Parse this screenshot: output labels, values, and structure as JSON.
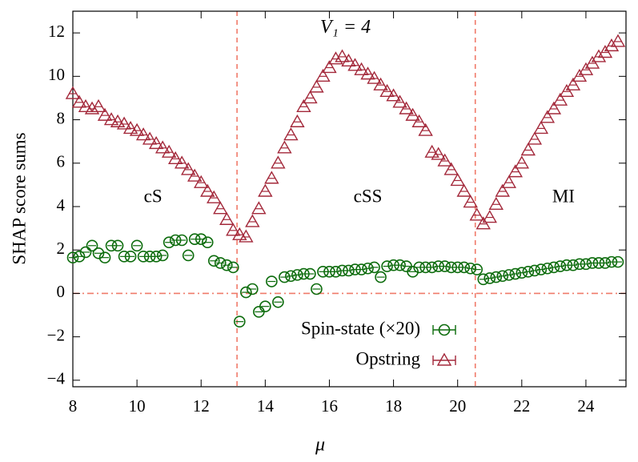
{
  "chart_data": {
    "type": "scatter",
    "xlabel": "μ",
    "ylabel": "SHAP score sums",
    "xlim": [
      8,
      25.25
    ],
    "ylim": [
      -4.3,
      13
    ],
    "xticks": [
      8,
      10,
      12,
      14,
      16,
      18,
      20,
      22,
      24
    ],
    "yticks": [
      {
        "value": -4,
        "label": "−4"
      },
      {
        "value": -2,
        "label": "−2"
      },
      0,
      2,
      4,
      6,
      8,
      10,
      12
    ],
    "vlines": [
      13.12,
      20.55
    ],
    "hlines": [
      0
    ],
    "annotations": [
      "V₁ = 4",
      "cS",
      "cSS",
      "MI"
    ],
    "legend": "bottom-center",
    "x": [
      8.0,
      8.2,
      8.4,
      8.6,
      8.8,
      9.0,
      9.2,
      9.4,
      9.6,
      9.8,
      10.0,
      10.2,
      10.4,
      10.6,
      10.8,
      11.0,
      11.2,
      11.4,
      11.6,
      11.8,
      12.0,
      12.2,
      12.4,
      12.6,
      12.8,
      13.0,
      13.2,
      13.4,
      13.6,
      13.8,
      14.0,
      14.2,
      14.4,
      14.6,
      14.8,
      15.0,
      15.2,
      15.4,
      15.6,
      15.8,
      16.0,
      16.2,
      16.4,
      16.6,
      16.8,
      17.0,
      17.2,
      17.4,
      17.6,
      17.8,
      18.0,
      18.2,
      18.4,
      18.6,
      18.8,
      19.0,
      19.2,
      19.4,
      19.6,
      19.8,
      20.0,
      20.2,
      20.4,
      20.6,
      20.8,
      21.0,
      21.2,
      21.4,
      21.6,
      21.8,
      22.0,
      22.2,
      22.4,
      22.6,
      22.8,
      23.0,
      23.2,
      23.4,
      23.6,
      23.8,
      24.0,
      24.2,
      24.4,
      24.6,
      24.8,
      25.0
    ],
    "series": [
      {
        "name": "Spin-state (×20)",
        "color": "#0b6b0b",
        "marker": "circle",
        "values": [
          1.65,
          1.7,
          1.9,
          2.2,
          1.85,
          1.65,
          2.2,
          2.2,
          1.7,
          1.7,
          2.2,
          1.7,
          1.7,
          1.7,
          1.75,
          2.35,
          2.45,
          2.45,
          1.75,
          2.5,
          2.5,
          2.35,
          1.5,
          1.4,
          1.3,
          1.2,
          -1.3,
          0.05,
          0.2,
          -0.85,
          -0.6,
          0.55,
          -0.4,
          0.75,
          0.8,
          0.85,
          0.9,
          0.9,
          0.2,
          1.0,
          1.0,
          1.0,
          1.05,
          1.05,
          1.1,
          1.1,
          1.15,
          1.2,
          0.75,
          1.25,
          1.3,
          1.3,
          1.25,
          1.0,
          1.2,
          1.2,
          1.2,
          1.25,
          1.25,
          1.2,
          1.2,
          1.2,
          1.15,
          1.1,
          0.65,
          0.7,
          0.75,
          0.8,
          0.85,
          0.9,
          0.95,
          1.0,
          1.05,
          1.1,
          1.15,
          1.2,
          1.25,
          1.3,
          1.3,
          1.35,
          1.35,
          1.4,
          1.4,
          1.4,
          1.45,
          1.45
        ]
      },
      {
        "name": "Opstring",
        "color": "#a3283a",
        "marker": "triangle",
        "values": [
          9.2,
          8.8,
          8.6,
          8.5,
          8.6,
          8.2,
          8.0,
          7.9,
          7.8,
          7.6,
          7.5,
          7.3,
          7.1,
          6.9,
          6.7,
          6.5,
          6.2,
          6.0,
          5.7,
          5.4,
          5.1,
          4.7,
          4.4,
          3.9,
          3.4,
          2.9,
          2.7,
          2.6,
          3.3,
          3.9,
          4.7,
          5.3,
          6.0,
          6.7,
          7.3,
          7.9,
          8.6,
          9.0,
          9.5,
          10.0,
          10.4,
          10.8,
          10.9,
          10.7,
          10.5,
          10.3,
          10.1,
          9.9,
          9.6,
          9.3,
          9.1,
          8.8,
          8.5,
          8.2,
          7.9,
          7.5,
          6.5,
          6.4,
          6.1,
          5.7,
          5.2,
          4.7,
          4.2,
          3.6,
          3.2,
          3.5,
          4.1,
          4.7,
          5.1,
          5.6,
          6.0,
          6.6,
          7.1,
          7.6,
          8.1,
          8.5,
          8.9,
          9.3,
          9.6,
          10.0,
          10.3,
          10.6,
          10.9,
          11.1,
          11.4,
          11.6
        ]
      }
    ]
  }
}
